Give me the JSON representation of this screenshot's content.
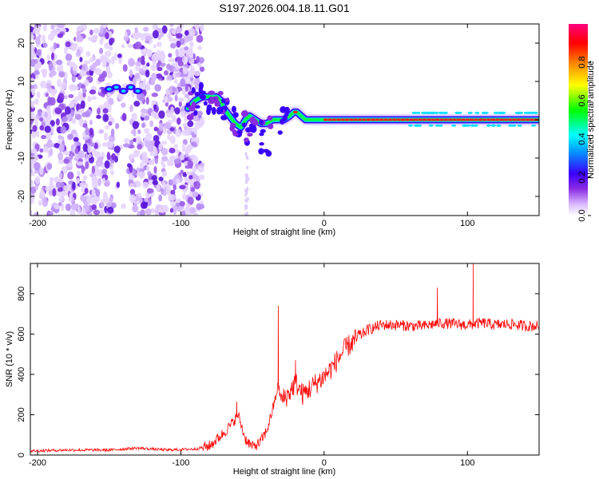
{
  "title": "S197.2026.004.18.11.G01",
  "chart_data": [
    {
      "type": "heatmap",
      "panel": "top",
      "xlabel": "Height of straight line (km)",
      "ylabel": "Frequency (Hz)",
      "xlim": [
        -205,
        150
      ],
      "ylim": [
        -25,
        25
      ],
      "xticks": [
        -200,
        -100,
        0,
        100
      ],
      "xtick_labels": [
        "-200",
        "-100",
        "0",
        "100"
      ],
      "yticks": [
        -20,
        -10,
        0,
        10,
        20
      ],
      "ytick_labels": [
        "-20",
        "-10",
        "0",
        "10",
        "20"
      ],
      "colorbar": {
        "label": "Normalized spectral amplitude",
        "range": [
          0,
          1
        ],
        "ticks": [
          0.0,
          0.2,
          0.4,
          0.6,
          0.8
        ],
        "tick_labels": [
          "0.0",
          "0.2",
          "0.4",
          "0.6",
          "0.8"
        ],
        "colormap": [
          "#ffffff",
          "#c9a3ff",
          "#8a2be2",
          "#3a00ff",
          "#00a0ff",
          "#00ffff",
          "#00ff00",
          "#ffff00",
          "#ff8000",
          "#ff0000",
          "#ff0080"
        ]
      },
      "ridge": {
        "description_units": "height km vs frequency Hz",
        "x": [
          -150,
          -145,
          -140,
          -135,
          -130,
          -120,
          -110,
          -100,
          -95,
          -90,
          -85,
          -80,
          -75,
          -72,
          -70,
          -66,
          -62,
          -58,
          -55,
          -52,
          -48,
          -44,
          -40,
          -36,
          -32,
          -28,
          -24,
          -21,
          -19,
          -16,
          -13,
          -10,
          -6,
          -2,
          0,
          20,
          50,
          80,
          100,
          120,
          150
        ],
        "y": [
          8,
          8,
          7,
          8,
          7,
          5,
          4,
          3,
          3,
          5,
          6,
          6,
          6,
          5,
          3,
          1,
          -1,
          -2,
          0,
          1,
          0,
          -1,
          -1,
          0,
          0,
          0,
          1,
          2,
          2,
          1,
          0,
          0,
          0,
          0,
          0,
          0,
          0,
          0,
          0,
          0,
          0
        ]
      },
      "noise_region_x": [
        -205,
        -85
      ]
    },
    {
      "type": "line",
      "panel": "bottom",
      "xlabel": "Height of straight line (km)",
      "ylabel": "SNR (10 * v/v)",
      "xlim": [
        -205,
        150
      ],
      "ylim": [
        0,
        950
      ],
      "xticks": [
        -200,
        -100,
        0,
        100
      ],
      "xtick_labels": [
        "-200",
        "-100",
        "0",
        "100"
      ],
      "yticks": [
        0,
        200,
        400,
        600,
        800
      ],
      "ytick_labels": [
        "0",
        "200",
        "400",
        "600",
        "800"
      ],
      "series": [
        {
          "name": "SNR",
          "color": "#ff0000",
          "x": [
            -205,
            -180,
            -150,
            -130,
            -110,
            -90,
            -80,
            -70,
            -65,
            -60,
            -55,
            -50,
            -45,
            -40,
            -35,
            -32,
            -30,
            -25,
            -20,
            -15,
            -10,
            -5,
            0,
            5,
            10,
            15,
            20,
            25,
            30,
            40,
            50,
            60,
            70,
            80,
            90,
            100,
            110,
            120,
            130,
            140,
            150
          ],
          "y": [
            20,
            25,
            25,
            35,
            25,
            30,
            45,
            110,
            150,
            200,
            80,
            40,
            60,
            120,
            250,
            350,
            270,
            300,
            360,
            300,
            330,
            360,
            390,
            430,
            480,
            530,
            560,
            590,
            620,
            645,
            645,
            640,
            640,
            655,
            650,
            645,
            655,
            645,
            650,
            640,
            640
          ],
          "spikes": [
            {
              "x": -61,
              "y": 265
            },
            {
              "x": -32,
              "y": 740
            },
            {
              "x": -20,
              "y": 470
            },
            {
              "x": 79,
              "y": 830
            },
            {
              "x": 104,
              "y": 950
            }
          ]
        }
      ]
    }
  ]
}
